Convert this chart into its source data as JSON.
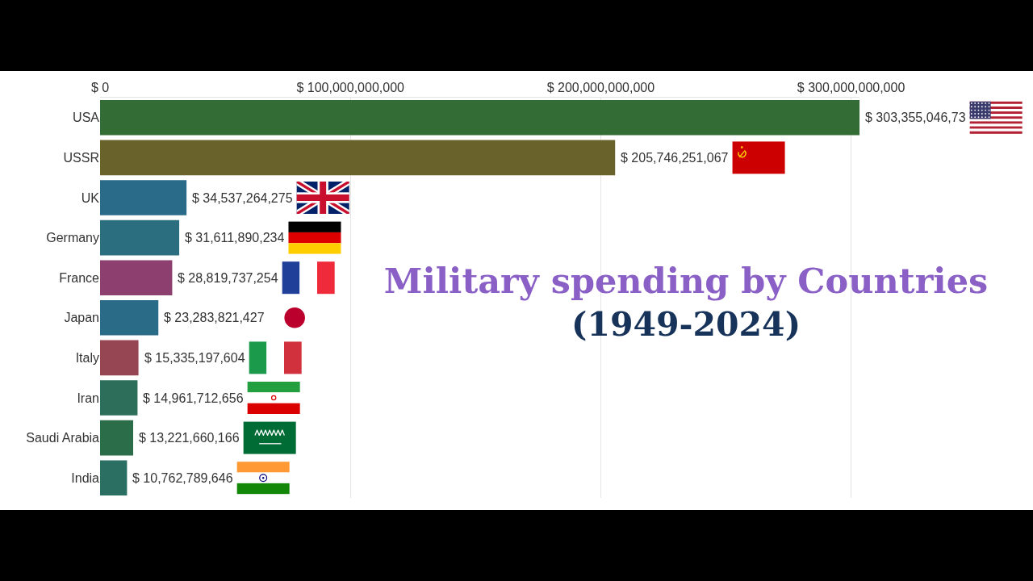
{
  "chart_data": {
    "type": "bar",
    "orientation": "horizontal",
    "title": "Military spending by Countries",
    "subtitle": "(1949-2024)",
    "categories": [
      "USA",
      "USSR",
      "UK",
      "Germany",
      "France",
      "Japan",
      "Italy",
      "Iran",
      "Saudi Arabia",
      "India"
    ],
    "values": [
      303355046730,
      205746251067,
      34537264275,
      31611890234,
      28819737254,
      23283821427,
      15335197604,
      14961712656,
      13221660166,
      10762789646
    ],
    "colors": [
      "#346c36",
      "#69622a",
      "#2a6b89",
      "#2a6e80",
      "#8d3f6f",
      "#2a6b87",
      "#964652",
      "#2c6e5a",
      "#2c6d49",
      "#2b6f63"
    ],
    "value_labels": [
      "$ 303,355,046,73",
      "$ 205,746,251,067",
      "$ 34,537,264,275",
      "$ 31,611,890,234",
      "$ 28,819,737,254",
      "$ 23,283,821,427",
      "$ 15,335,197,604",
      "$ 14,961,712,656",
      "$ 13,221,660,166",
      "$ 10,762,789,646"
    ],
    "xlim": [
      0,
      303355046730
    ],
    "xticks": [
      {
        "value": 0,
        "label": "$ 0"
      },
      {
        "value": 100000000000,
        "label": "$ 100,000,000,000"
      },
      {
        "value": 200000000000,
        "label": "$ 200,000,000,000"
      },
      {
        "value": 300000000000,
        "label": "$ 300,000,000,000"
      }
    ],
    "grid": "x"
  }
}
